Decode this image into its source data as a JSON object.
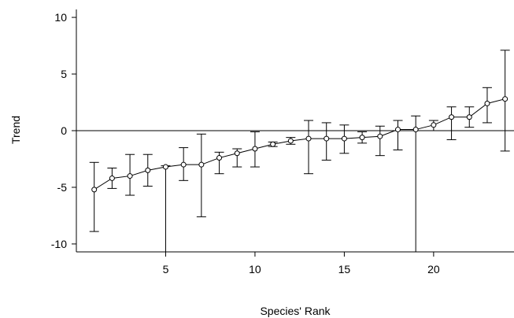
{
  "chart_data": {
    "type": "line",
    "title": "",
    "xlabel": "Species' Rank",
    "ylabel": "Trend",
    "xlim": [
      0,
      24.5
    ],
    "ylim": [
      -10.7,
      10.7
    ],
    "xticks": [
      5,
      10,
      15,
      20
    ],
    "yticks": [
      -10,
      -5,
      0,
      5,
      10
    ],
    "grid": false,
    "reference_line_y": 0,
    "series": [
      {
        "x": [
          1,
          2,
          3,
          4,
          5,
          6,
          7,
          8,
          9,
          10,
          11,
          12,
          13,
          14,
          15,
          16,
          17,
          18,
          19,
          20,
          21,
          22,
          23,
          24
        ],
        "values": [
          -5.2,
          -4.2,
          -4.0,
          -3.5,
          -3.2,
          -3.0,
          -3.0,
          -2.4,
          -2.0,
          -1.6,
          -1.2,
          -0.9,
          -0.7,
          -0.7,
          -0.7,
          -0.6,
          -0.5,
          0.1,
          0.1,
          0.5,
          1.2,
          1.2,
          2.4,
          2.8
        ],
        "lower": [
          -8.9,
          -5.1,
          -5.7,
          -4.9,
          -11.5,
          -4.4,
          -7.6,
          -3.8,
          -3.2,
          -3.2,
          -1.4,
          -1.2,
          -3.8,
          -2.6,
          -2.0,
          -1.1,
          -2.2,
          -1.7,
          -11.5,
          0.0,
          -0.8,
          0.3,
          0.7,
          -1.8
        ],
        "upper": [
          -2.8,
          -3.3,
          -2.1,
          -2.1,
          -3.1,
          -1.5,
          -0.3,
          -1.9,
          -1.6,
          -0.1,
          -1.0,
          -0.6,
          0.9,
          0.7,
          0.5,
          -0.1,
          0.4,
          0.9,
          1.3,
          0.9,
          2.1,
          2.1,
          3.8,
          7.1
        ]
      }
    ]
  }
}
